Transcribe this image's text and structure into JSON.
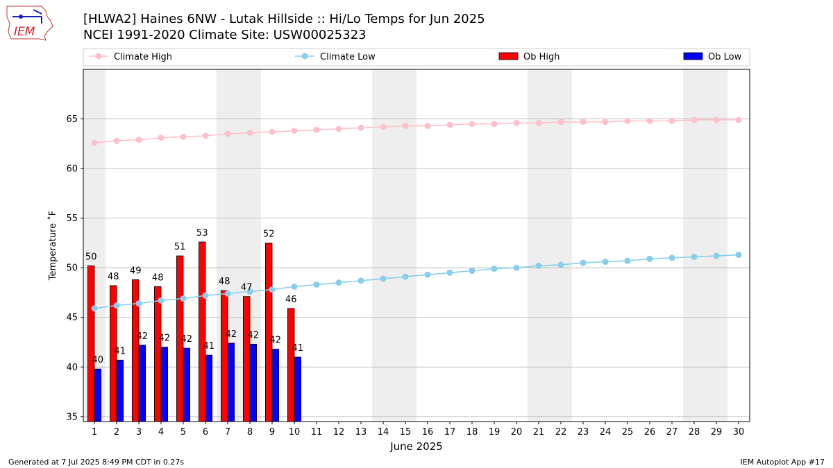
{
  "header": {
    "title_line1": "[HLWA2] Haines 6NW - Lutak Hillside :: Hi/Lo Temps for Jun 2025",
    "title_line2": "NCEI 1991-2020 Climate Site: USW00025323"
  },
  "logo": {
    "text": "IEM"
  },
  "footer": {
    "left": "Generated at 7 Jul 2025 8:49 PM CDT in 0.27s",
    "right": "IEM Autoplot App #17"
  },
  "chart_data": {
    "type": "bar",
    "xlabel": "June 2025",
    "ylabel": "Temperature ˚F",
    "ylim": [
      34.5,
      70
    ],
    "yticks": [
      35,
      40,
      45,
      50,
      55,
      60,
      65
    ],
    "xlim": [
      0.5,
      30.5
    ],
    "days": [
      1,
      2,
      3,
      4,
      5,
      6,
      7,
      8,
      9,
      10,
      11,
      12,
      13,
      14,
      15,
      16,
      17,
      18,
      19,
      20,
      21,
      22,
      23,
      24,
      25,
      26,
      27,
      28,
      29,
      30
    ],
    "weekend_bands": [
      [
        0.5,
        1.5
      ],
      [
        6.5,
        8.5
      ],
      [
        13.5,
        15.5
      ],
      [
        20.5,
        22.5
      ],
      [
        27.5,
        29.5
      ]
    ],
    "grid": "horizontal",
    "legend_position": "top",
    "legend": [
      {
        "label": "Climate High",
        "kind": "line",
        "color": "#ffc0cb"
      },
      {
        "label": "Climate Low",
        "kind": "line",
        "color": "#87ceeb"
      },
      {
        "label": "Ob High",
        "kind": "bar",
        "color": "#ff0000"
      },
      {
        "label": "Ob Low",
        "kind": "bar",
        "color": "#0000ff"
      }
    ],
    "series": [
      {
        "name": "Climate High",
        "kind": "line",
        "color": "#ffc0cb",
        "values": [
          62.6,
          62.8,
          62.9,
          63.1,
          63.2,
          63.3,
          63.5,
          63.6,
          63.7,
          63.8,
          63.9,
          64.0,
          64.1,
          64.2,
          64.3,
          64.3,
          64.4,
          64.5,
          64.5,
          64.6,
          64.6,
          64.7,
          64.7,
          64.7,
          64.8,
          64.8,
          64.8,
          64.9,
          64.9,
          64.9
        ]
      },
      {
        "name": "Climate Low",
        "kind": "line",
        "color": "#87ceeb",
        "values": [
          45.9,
          46.2,
          46.4,
          46.7,
          46.9,
          47.2,
          47.4,
          47.6,
          47.8,
          48.1,
          48.3,
          48.5,
          48.7,
          48.9,
          49.1,
          49.3,
          49.5,
          49.7,
          49.9,
          50.0,
          50.2,
          50.3,
          50.5,
          50.6,
          50.7,
          50.9,
          51.0,
          51.1,
          51.2,
          51.3
        ]
      },
      {
        "name": "Ob High",
        "kind": "bar",
        "color": "#ff0000",
        "values": [
          50.2,
          48.2,
          48.8,
          48.1,
          51.2,
          52.6,
          47.7,
          47.1,
          52.5,
          45.9
        ],
        "labels": [
          "50",
          "48",
          "49",
          "48",
          "51",
          "53",
          "48",
          "47",
          "52",
          "46"
        ]
      },
      {
        "name": "Ob Low",
        "kind": "bar",
        "color": "#0000ff",
        "values": [
          39.8,
          40.7,
          42.2,
          42.0,
          41.9,
          41.2,
          42.4,
          42.3,
          41.8,
          41.0
        ],
        "labels": [
          "40",
          "41",
          "42",
          "42",
          "42",
          "41",
          "42",
          "42",
          "42",
          "41"
        ]
      }
    ]
  }
}
